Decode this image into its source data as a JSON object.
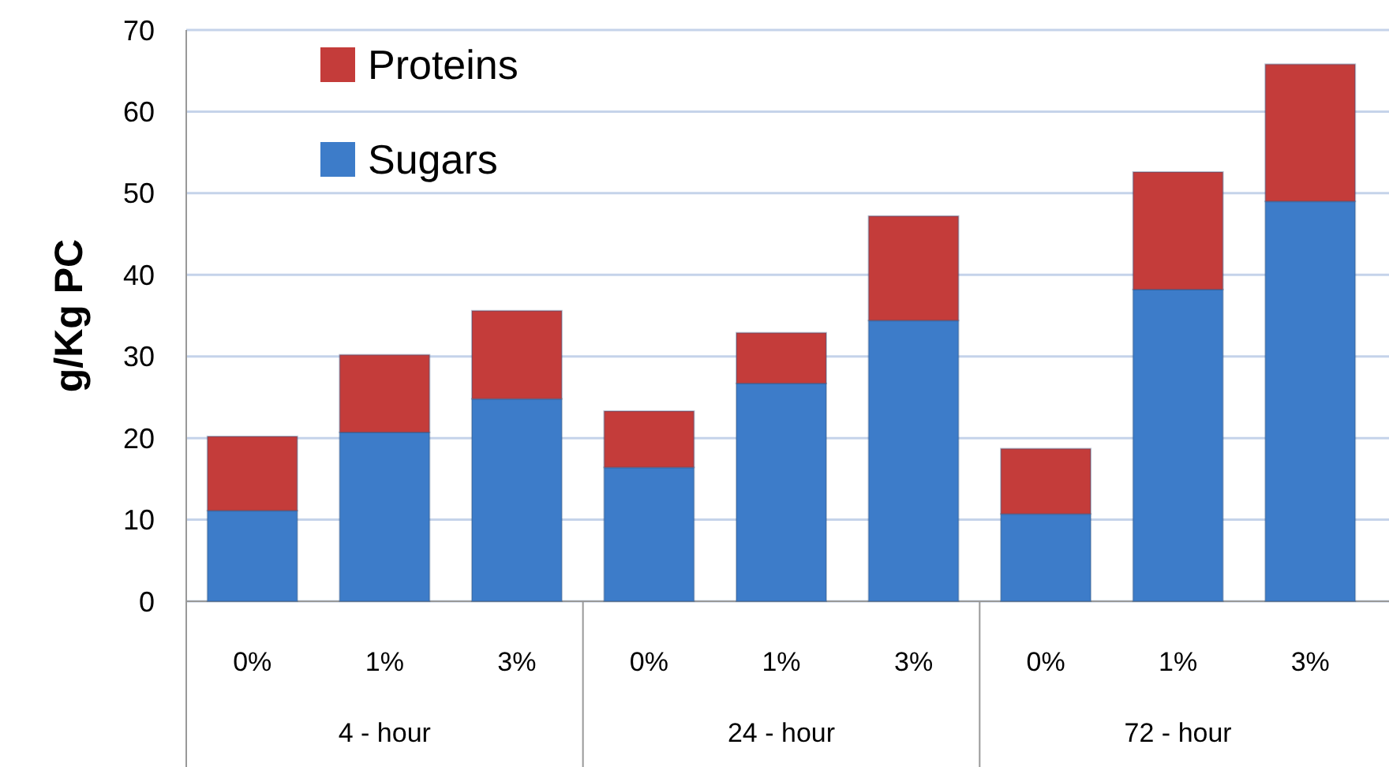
{
  "chart_data": {
    "type": "bar",
    "stacked": true,
    "ylabel": "g/Kg PC",
    "categories": [
      "0%",
      "1%",
      "3%",
      "0%",
      "1%",
      "3%",
      "0%",
      "1%",
      "3%"
    ],
    "series": [
      {
        "name": "Sugars",
        "color": "#3d7cc9",
        "values": [
          11.1,
          20.7,
          24.8,
          16.4,
          26.7,
          34.4,
          10.7,
          38.2,
          49.0
        ]
      },
      {
        "name": "Proteins",
        "color": "#c43c3a",
        "values": [
          9.1,
          9.5,
          10.8,
          6.9,
          6.2,
          12.8,
          8.0,
          14.4,
          16.8
        ]
      }
    ],
    "annotations": [
      "4 - hour",
      "24 - hour",
      "72 - hour"
    ],
    "ylim": [
      0,
      70
    ],
    "yticks": [
      0,
      10,
      20,
      30,
      40,
      50,
      60,
      70
    ],
    "grid": "y",
    "legend": "top left"
  }
}
